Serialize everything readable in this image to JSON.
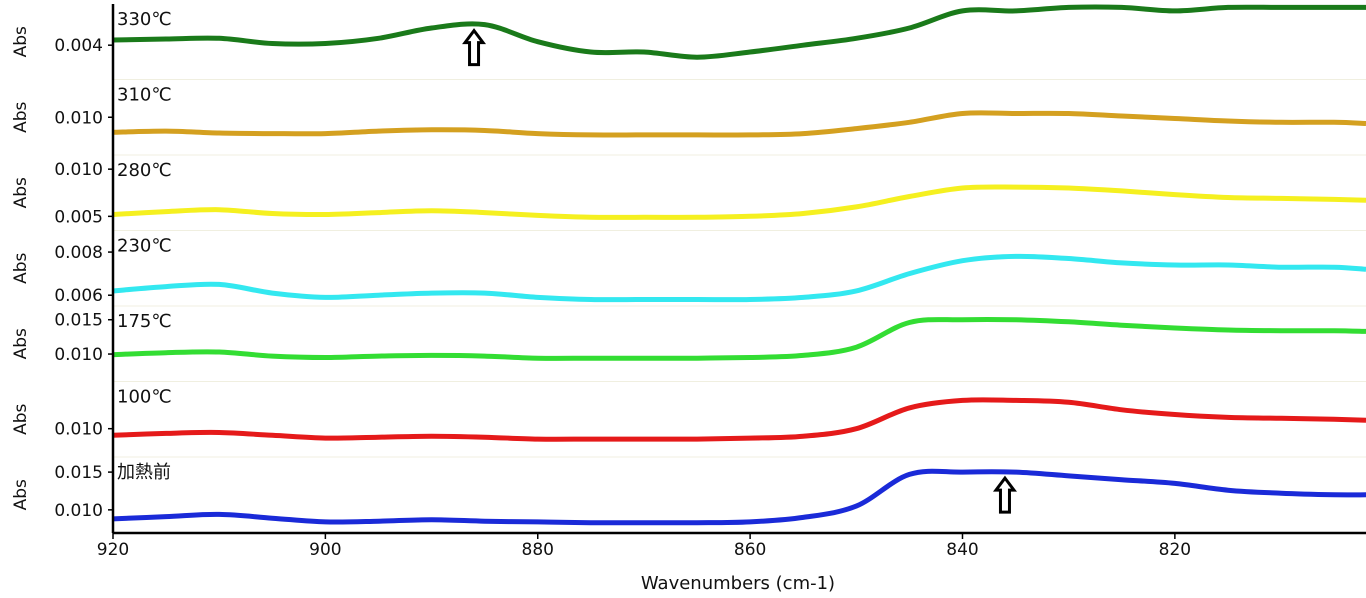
{
  "chart_data": {
    "type": "line",
    "xlabel": "Wavenumbers (cm-1)",
    "ylabel": "Abs",
    "xlim": [
      920,
      802
    ],
    "x_ticks": [
      920,
      900,
      880,
      860,
      840,
      820
    ],
    "grid": false,
    "legend": "none",
    "x": [
      920,
      915,
      910,
      905,
      900,
      895,
      890,
      885,
      880,
      875,
      870,
      865,
      860,
      855,
      850,
      845,
      840,
      835,
      830,
      825,
      820,
      815,
      810,
      805,
      802
    ],
    "series": [
      {
        "name": "330℃",
        "color": "#1a7a1a",
        "ylim": [
          0.003,
          0.0052
        ],
        "y_ticks": [
          0.004
        ],
        "values": [
          0.00415,
          0.00418,
          0.0042,
          0.00405,
          0.00405,
          0.0042,
          0.0045,
          0.0046,
          0.0041,
          0.0038,
          0.0038,
          0.00365,
          0.0038,
          0.004,
          0.0042,
          0.0045,
          0.005,
          0.005,
          0.0051,
          0.0051,
          0.005,
          0.0051,
          0.0051,
          0.0051,
          0.0051
        ]
      },
      {
        "name": "310℃",
        "color": "#d4a020",
        "ylim": [
          0.007,
          0.013
        ],
        "y_ticks": [
          0.01
        ],
        "values": [
          0.0088,
          0.0089,
          0.00875,
          0.0087,
          0.0087,
          0.0089,
          0.009,
          0.00895,
          0.0087,
          0.0086,
          0.0086,
          0.0086,
          0.0086,
          0.0087,
          0.0091,
          0.0096,
          0.0103,
          0.0103,
          0.0103,
          0.0101,
          0.0099,
          0.0097,
          0.0096,
          0.0096,
          0.0095
        ]
      },
      {
        "name": "280℃",
        "color": "#f5f020",
        "ylim": [
          0.0035,
          0.0115
        ],
        "y_ticks": [
          0.01,
          0.005
        ],
        "values": [
          0.0052,
          0.0055,
          0.0057,
          0.0053,
          0.0052,
          0.0054,
          0.0056,
          0.0054,
          0.0051,
          0.0049,
          0.0049,
          0.0049,
          0.005,
          0.0053,
          0.006,
          0.0071,
          0.008,
          0.0081,
          0.008,
          0.0077,
          0.0073,
          0.007,
          0.0069,
          0.0068,
          0.0067
        ]
      },
      {
        "name": "230℃",
        "color": "#33e8f0",
        "ylim": [
          0.0055,
          0.009
        ],
        "y_ticks": [
          0.008,
          0.006
        ],
        "values": [
          0.0062,
          0.0064,
          0.0065,
          0.0061,
          0.0059,
          0.006,
          0.0061,
          0.0061,
          0.0059,
          0.0058,
          0.0058,
          0.0058,
          0.0058,
          0.0059,
          0.0062,
          0.007,
          0.0076,
          0.0078,
          0.0077,
          0.0075,
          0.0074,
          0.0074,
          0.0073,
          0.0073,
          0.0072
        ]
      },
      {
        "name": "175℃",
        "color": "#33dd33",
        "ylim": [
          0.006,
          0.017
        ],
        "y_ticks": [
          0.015,
          0.01
        ],
        "values": [
          0.0099,
          0.0102,
          0.0103,
          0.0097,
          0.0095,
          0.0097,
          0.0098,
          0.0097,
          0.0094,
          0.0094,
          0.0094,
          0.0094,
          0.0095,
          0.0098,
          0.011,
          0.0146,
          0.015,
          0.015,
          0.0147,
          0.0142,
          0.0138,
          0.0135,
          0.0134,
          0.0134,
          0.0133
        ]
      },
      {
        "name": "100℃",
        "color": "#e51a1a",
        "ylim": [
          0.007,
          0.015
        ],
        "y_ticks": [
          0.01
        ],
        "values": [
          0.0093,
          0.0095,
          0.0096,
          0.0093,
          0.009,
          0.0091,
          0.0092,
          0.0091,
          0.0089,
          0.0089,
          0.0089,
          0.0089,
          0.009,
          0.0092,
          0.01,
          0.0122,
          0.013,
          0.013,
          0.0128,
          0.012,
          0.0115,
          0.0112,
          0.0111,
          0.011,
          0.0109
        ]
      },
      {
        "name": "加熱前",
        "color": "#1a2ad8",
        "ylim": [
          0.007,
          0.017
        ],
        "y_ticks": [
          0.015,
          0.01
        ],
        "values": [
          0.0088,
          0.0091,
          0.0094,
          0.0089,
          0.0084,
          0.0085,
          0.0087,
          0.0085,
          0.0084,
          0.0083,
          0.0083,
          0.0083,
          0.0084,
          0.009,
          0.0105,
          0.0147,
          0.015,
          0.015,
          0.0145,
          0.014,
          0.0135,
          0.0126,
          0.0122,
          0.012,
          0.012
        ]
      }
    ],
    "annotations": [
      {
        "type": "arrow-up",
        "series": "330℃",
        "x": 886
      },
      {
        "type": "arrow-up",
        "series": "加熱前",
        "x": 836
      }
    ]
  }
}
